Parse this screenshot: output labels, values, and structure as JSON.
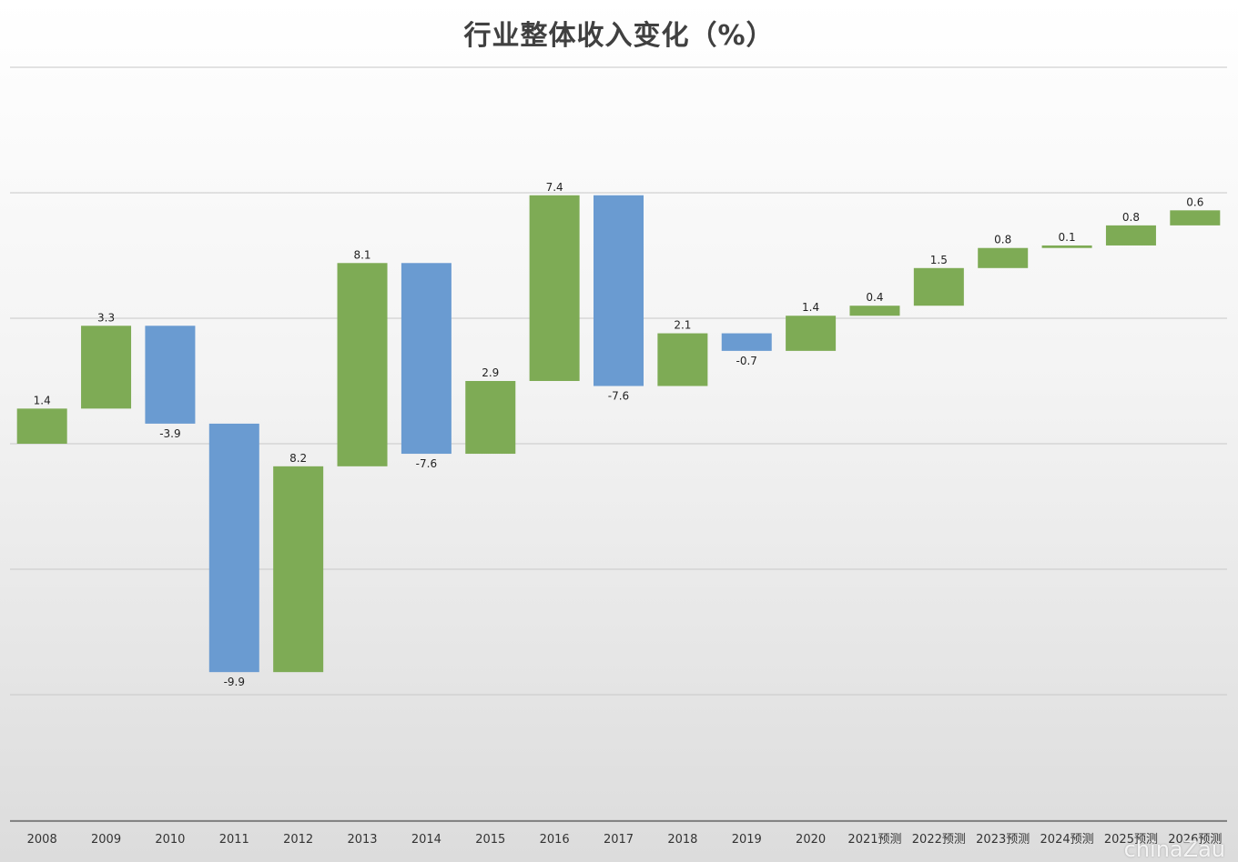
{
  "chart_data": {
    "type": "bar",
    "subtype": "waterfall",
    "title": "行业整体收入变化（%）",
    "xlabel": "",
    "ylabel": "",
    "categories": [
      "2008",
      "2009",
      "2010",
      "2011",
      "2012",
      "2013",
      "2014",
      "2015",
      "2016",
      "2017",
      "2018",
      "2019",
      "2020",
      "2021预测",
      "2022预测",
      "2023预测",
      "2024预测",
      "2025预测",
      "2026预测"
    ],
    "values": [
      1.4,
      3.3,
      -3.9,
      -9.9,
      8.2,
      8.1,
      -7.6,
      2.9,
      7.4,
      -7.6,
      2.1,
      -0.7,
      1.4,
      0.4,
      1.5,
      0.8,
      0.1,
      0.8,
      0.6
    ],
    "value_labels": [
      "1.4",
      "3.3",
      "-3.9",
      "-9.9",
      "8.2",
      "8.1",
      "-7.6",
      "2.9",
      "7.4",
      "-7.6",
      "2.1",
      "-0.7",
      "1.4",
      "0.4",
      "1.5",
      "0.8",
      "0.1",
      "0.8",
      "0.6"
    ],
    "colors": {
      "increase": "#7eab55",
      "decrease": "#6a9bd1"
    },
    "ylim": [
      -15,
      15
    ],
    "grid": true,
    "legend": "none"
  },
  "watermark": "chinaZau"
}
